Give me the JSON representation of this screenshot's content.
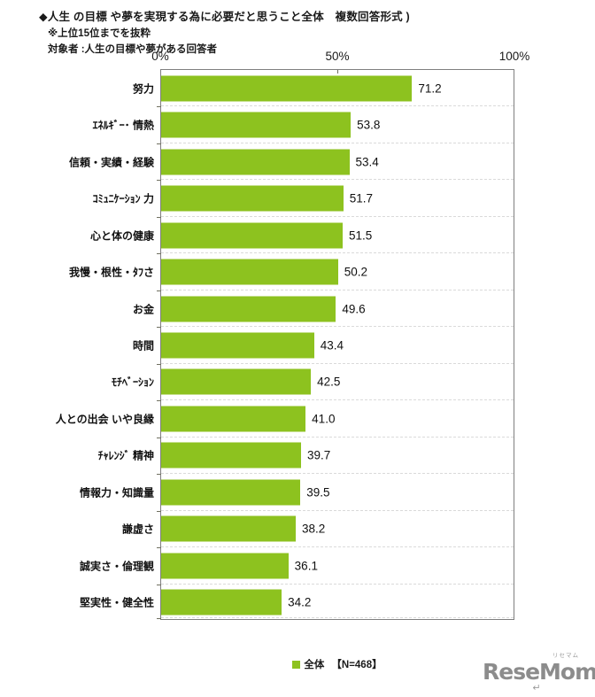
{
  "header": {
    "title": "◆人生 の目標 や夢を実現する為に必要だと思うこと全体　複数回答形式 )",
    "note_extract": "※上位15位までを抜粋",
    "note_target": "対象者 :人生の目標や夢がある回答者"
  },
  "chart_data": {
    "type": "bar",
    "orientation": "horizontal",
    "title": "人生の目標や夢を実現する為に必要だと思うこと全体（複数回答形式）",
    "categories": [
      "努力",
      "ｴﾈﾙｷﾞｰ･ 情熱",
      "信頼・実績・経験",
      "ｺﾐｭﾆｹｰｼｮﾝ 力",
      "心と体の健康",
      "我慢・根性・ﾀﾌさ",
      "お金",
      "時間",
      "ﾓﾁﾍﾞｰｼｮﾝ",
      "人との出会 いや良縁",
      "ﾁｬﾚﾝｼﾞ 精神",
      "情報力・知識量",
      "謙虚さ",
      "誠実さ・倫理観",
      "堅実性・健全性"
    ],
    "values": [
      71.2,
      53.8,
      53.4,
      51.7,
      51.5,
      50.2,
      49.6,
      43.4,
      42.5,
      41.0,
      39.7,
      39.5,
      38.2,
      36.1,
      34.2
    ],
    "xlim": [
      0,
      100
    ],
    "x_ticks": [
      "0%",
      "50%",
      "100%"
    ],
    "grid": "dashed-row-separators",
    "bar_color": "#8dc21f",
    "legend": {
      "label": "全体",
      "n_label": "【N=468】",
      "position": "bottom-center"
    }
  },
  "footer": {
    "logo_text": "ReseMom.",
    "logo_ruby": "リセマム",
    "logo_return_mark": "↵",
    "logo_color": "#8c8c8c"
  }
}
